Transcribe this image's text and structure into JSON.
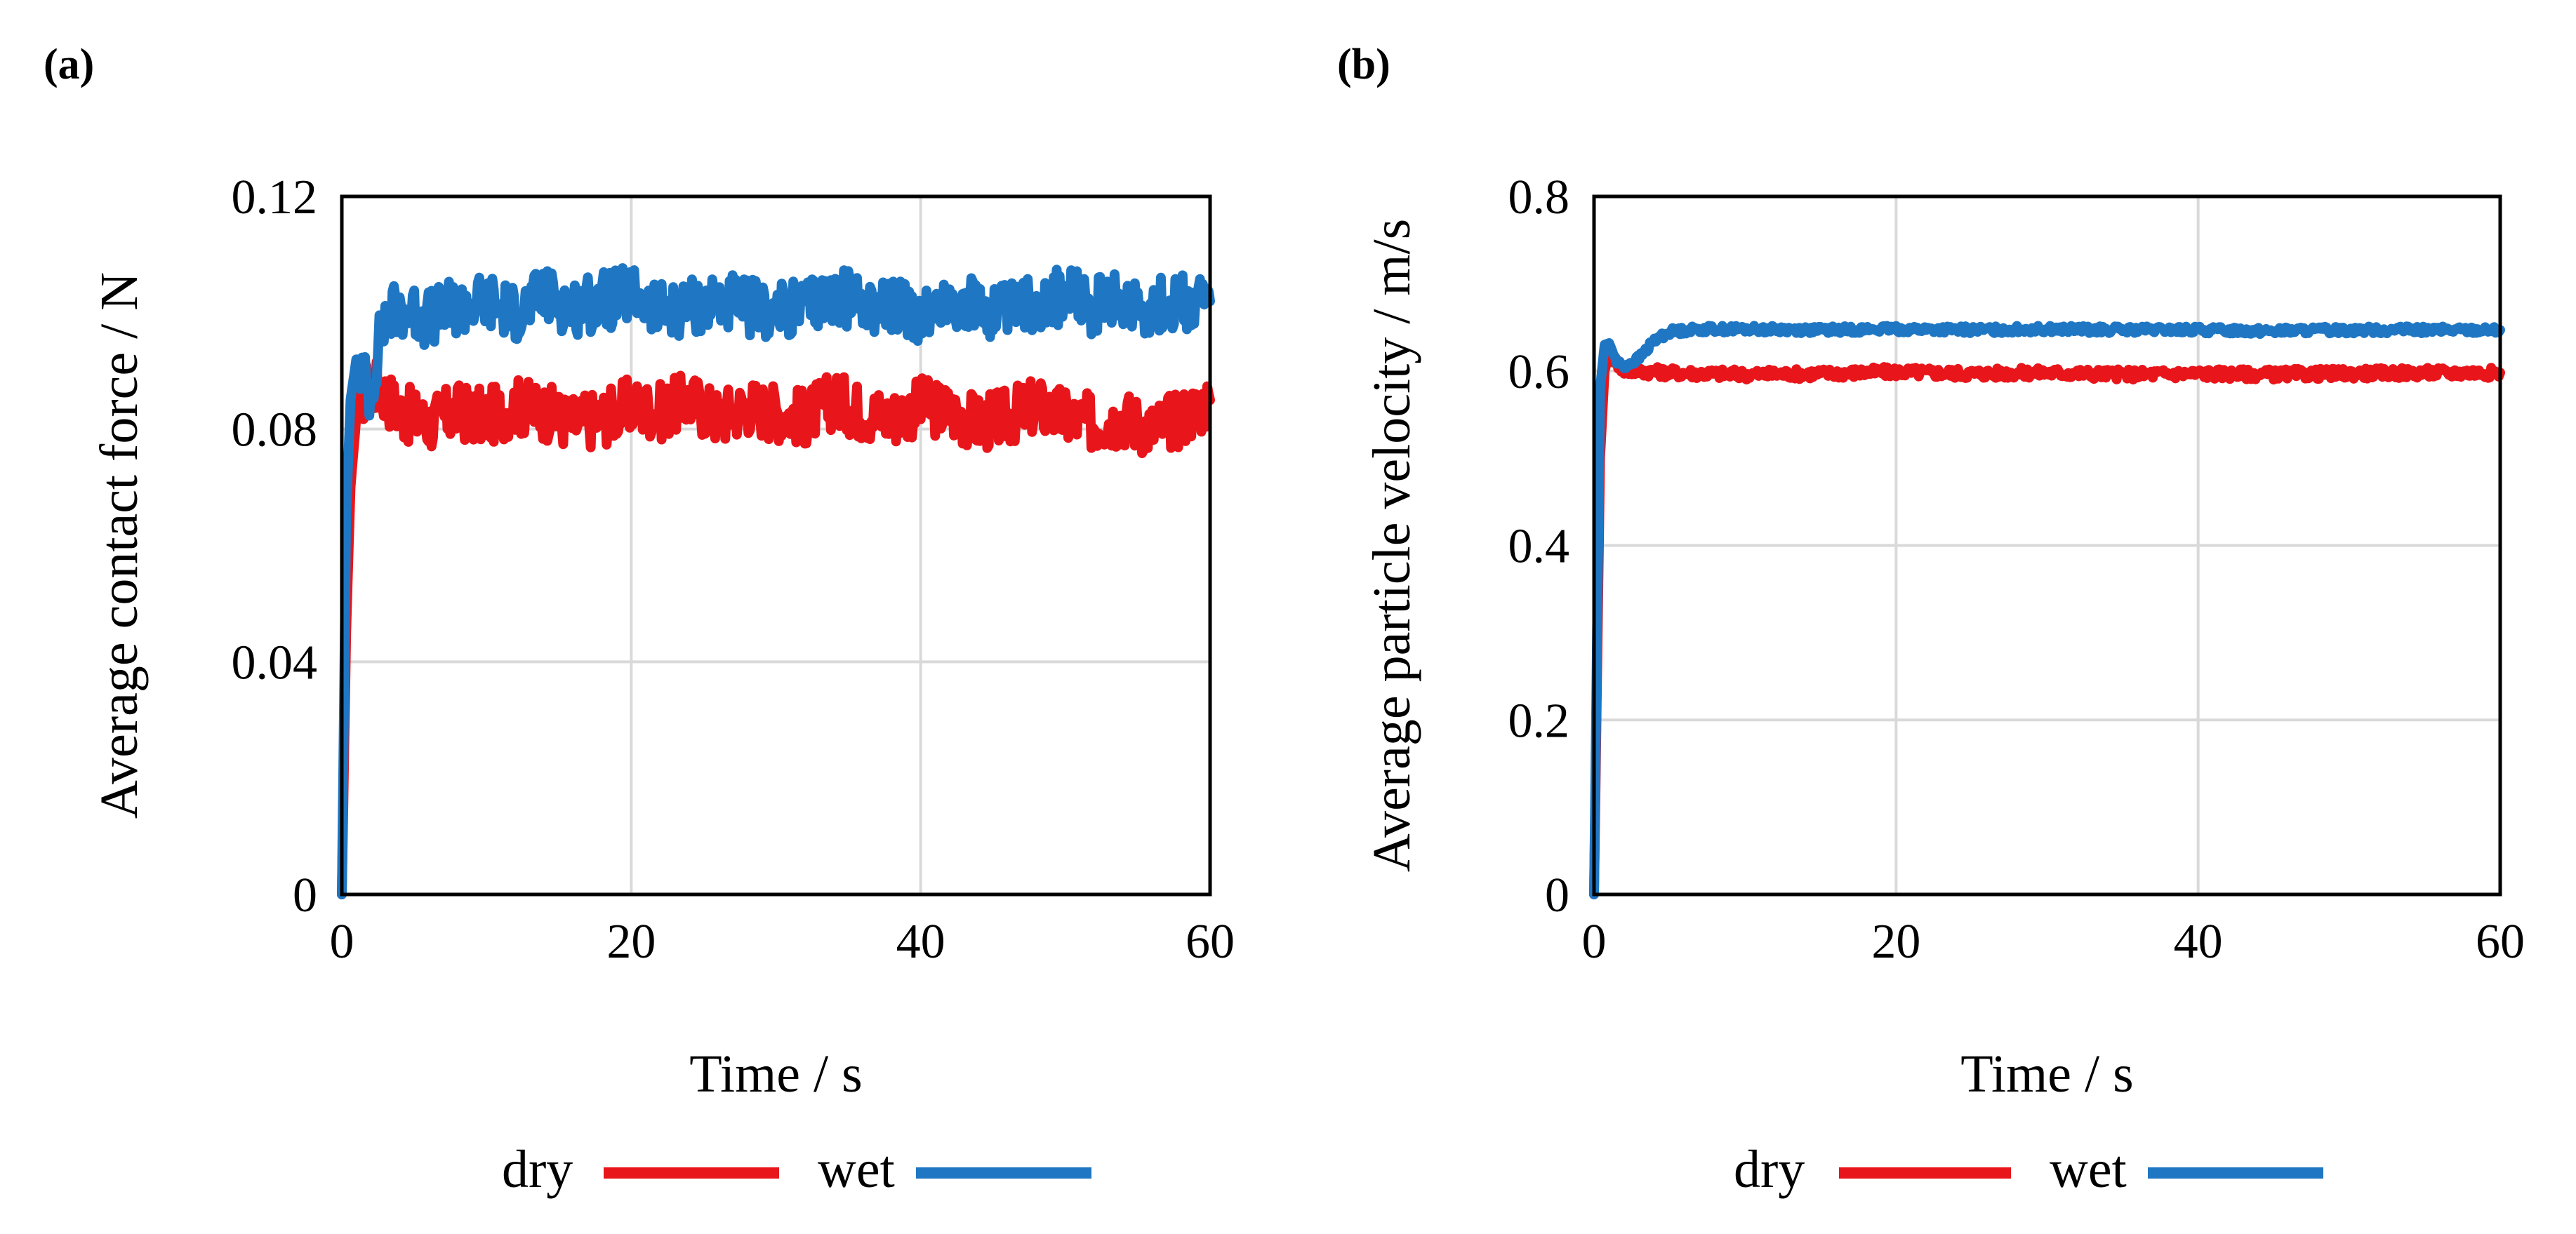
{
  "chart_data": [
    {
      "panel_label": "(a)",
      "type": "line",
      "xlabel": "Time / s",
      "ylabel": "Average contact force / N",
      "xlim": [
        0,
        60
      ],
      "ylim": [
        0,
        0.12
      ],
      "xticks": [
        0,
        20,
        40,
        60
      ],
      "yticks": [
        0,
        0.04,
        0.08,
        0.12
      ],
      "xtick_labels": [
        "0",
        "20",
        "40",
        "60"
      ],
      "ytick_labels": [
        "0",
        "0.04",
        "0.08",
        "0.12"
      ],
      "grid": true,
      "legend_position": "bottom",
      "series": [
        {
          "name": "dry",
          "color": "#e8161b",
          "x": [
            0,
            0.3,
            0.6,
            1,
            1.5,
            2,
            3,
            4,
            5,
            6,
            8,
            10,
            12,
            14,
            16,
            18,
            20,
            22,
            24,
            26,
            28,
            30,
            32,
            34,
            36,
            38,
            40,
            42,
            44,
            46,
            48,
            50,
            52,
            54,
            56,
            58,
            60
          ],
          "values": [
            0,
            0.045,
            0.07,
            0.082,
            0.086,
            0.088,
            0.086,
            0.083,
            0.082,
            0.081,
            0.083,
            0.082,
            0.084,
            0.083,
            0.081,
            0.082,
            0.084,
            0.083,
            0.085,
            0.082,
            0.084,
            0.083,
            0.082,
            0.085,
            0.083,
            0.082,
            0.084,
            0.083,
            0.081,
            0.082,
            0.084,
            0.082,
            0.081,
            0.082,
            0.08,
            0.082,
            0.085
          ],
          "noise": 0.005
        },
        {
          "name": "wet",
          "color": "#1f77c4",
          "x": [
            0,
            0.3,
            0.6,
            1,
            1.5,
            2,
            2.5,
            3,
            4,
            5,
            6,
            8,
            10,
            12,
            14,
            16,
            18,
            20,
            22,
            24,
            26,
            28,
            30,
            32,
            34,
            36,
            38,
            40,
            42,
            44,
            46,
            48,
            50,
            52,
            54,
            56,
            58,
            60
          ],
          "values": [
            0,
            0.065,
            0.085,
            0.092,
            0.089,
            0.086,
            0.094,
            0.099,
            0.101,
            0.1,
            0.099,
            0.101,
            0.102,
            0.1,
            0.103,
            0.101,
            0.102,
            0.103,
            0.1,
            0.101,
            0.102,
            0.101,
            0.1,
            0.101,
            0.103,
            0.102,
            0.101,
            0.1,
            0.102,
            0.101,
            0.1,
            0.102,
            0.103,
            0.101,
            0.102,
            0.101,
            0.102,
            0.102
          ],
          "noise": 0.005
        }
      ]
    },
    {
      "panel_label": "(b)",
      "type": "line",
      "xlabel": "Time / s",
      "ylabel": "Average particle velocity / m/s",
      "xlim": [
        0,
        60
      ],
      "ylim": [
        0,
        0.8
      ],
      "xticks": [
        0,
        20,
        40,
        60
      ],
      "yticks": [
        0,
        0.2,
        0.4,
        0.6,
        0.8
      ],
      "xtick_labels": [
        "0",
        "20",
        "40",
        "60"
      ],
      "ytick_labels": [
        "0",
        "0.2",
        "0.4",
        "0.6",
        "0.8"
      ],
      "grid": true,
      "legend_position": "bottom",
      "series": [
        {
          "name": "dry",
          "color": "#e8161b",
          "x": [
            0,
            0.2,
            0.4,
            0.7,
            1,
            1.5,
            2,
            3,
            5,
            10,
            15,
            20,
            25,
            30,
            35,
            40,
            45,
            50,
            55,
            60
          ],
          "values": [
            0,
            0.25,
            0.5,
            0.6,
            0.62,
            0.61,
            0.6,
            0.6,
            0.598,
            0.596,
            0.597,
            0.599,
            0.597,
            0.598,
            0.596,
            0.597,
            0.596,
            0.597,
            0.598,
            0.598
          ],
          "noise": 0.006
        },
        {
          "name": "wet",
          "color": "#1f77c4",
          "x": [
            0,
            0.2,
            0.4,
            0.7,
            1,
            1.5,
            2,
            3,
            4,
            5,
            7,
            10,
            15,
            20,
            25,
            30,
            35,
            40,
            45,
            50,
            55,
            60
          ],
          "values": [
            0,
            0.3,
            0.58,
            0.63,
            0.632,
            0.61,
            0.605,
            0.615,
            0.635,
            0.645,
            0.648,
            0.648,
            0.647,
            0.648,
            0.647,
            0.648,
            0.647,
            0.647,
            0.646,
            0.647,
            0.647,
            0.647
          ],
          "noise": 0.004
        }
      ]
    }
  ]
}
